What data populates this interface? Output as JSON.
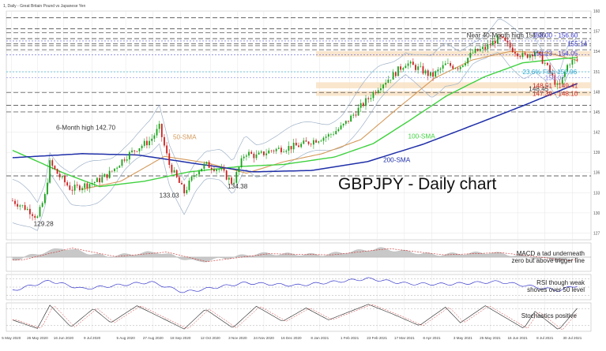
{
  "header": {
    "instrument": "1, Daily - Great Britain Pound vs Japanese Yen"
  },
  "main_title": "GBPJPY - Daily chart",
  "colors": {
    "bg": "#ffffff",
    "grid": "#e6e6e6",
    "up": "#17a317",
    "down": "#cc2020",
    "sma50": "#d49a5a",
    "sma100": "#3fd13f",
    "sma200": "#1f2fa8",
    "bb": "#9fb2c8",
    "level_blue": "#3a3acc",
    "level_red": "#cc2a2a",
    "fib": "#2aaad0",
    "zone": "#f8e2c4",
    "macd_hist": "#c8c8c8",
    "macd_signal": "#cc2a2a",
    "rsi": "#3a3acc",
    "stoch_main": "#222222",
    "stoch_signal": "#cc2a2a",
    "text": "#333333"
  },
  "chart_data": [
    {
      "type": "candlestick",
      "pane": "price",
      "ylim": [
        126.0,
        160.0
      ],
      "y_ticks": [
        127,
        130,
        133,
        136,
        139,
        142,
        145,
        148,
        151,
        154,
        157,
        160
      ],
      "close_path": [
        [
          "2020-05-06",
          131.8
        ],
        [
          "2020-05-12",
          131.2
        ],
        [
          "2020-05-20",
          130.3
        ],
        [
          "2020-05-26",
          129.28
        ],
        [
          "2020-06-01",
          132.5
        ],
        [
          "2020-06-05",
          137.4
        ],
        [
          "2020-06-12",
          135.6
        ],
        [
          "2020-06-22",
          133.5
        ],
        [
          "2020-07-06",
          134.3
        ],
        [
          "2020-07-14",
          134.8
        ],
        [
          "2020-07-24",
          136.0
        ],
        [
          "2020-08-04",
          138.2
        ],
        [
          "2020-08-14",
          139.6
        ],
        [
          "2020-08-25",
          140.8
        ],
        [
          "2020-09-01",
          142.7
        ],
        [
          "2020-09-09",
          137.2
        ],
        [
          "2020-09-21",
          133.03
        ],
        [
          "2020-09-30",
          136.0
        ],
        [
          "2020-10-08",
          137.2
        ],
        [
          "2020-10-20",
          136.4
        ],
        [
          "2020-10-30",
          134.38
        ],
        [
          "2020-11-09",
          139.0
        ],
        [
          "2020-11-18",
          138.4
        ],
        [
          "2020-11-30",
          139.3
        ],
        [
          "2020-12-09",
          139.6
        ],
        [
          "2020-12-22",
          140.0
        ],
        [
          "2021-01-05",
          140.9
        ],
        [
          "2021-01-15",
          141.5
        ],
        [
          "2021-01-26",
          142.8
        ],
        [
          "2021-02-05",
          144.8
        ],
        [
          "2021-02-16",
          147.0
        ],
        [
          "2021-02-25",
          148.9
        ],
        [
          "2021-03-08",
          150.5
        ],
        [
          "2021-03-18",
          152.3
        ],
        [
          "2021-03-29",
          151.4
        ],
        [
          "2021-04-08",
          150.3
        ],
        [
          "2021-04-19",
          152.0
        ],
        [
          "2021-04-30",
          151.7
        ],
        [
          "2021-05-11",
          153.8
        ],
        [
          "2021-05-21",
          154.5
        ],
        [
          "2021-06-01",
          156.06
        ],
        [
          "2021-06-10",
          154.6
        ],
        [
          "2021-06-21",
          153.2
        ],
        [
          "2021-06-30",
          154.0
        ],
        [
          "2021-07-08",
          152.2
        ],
        [
          "2021-07-19",
          148.45
        ],
        [
          "2021-07-27",
          152.4
        ],
        [
          "2021-08-04",
          152.7
        ]
      ],
      "sma50_path": [
        [
          "2020-07-01",
          133.5
        ],
        [
          "2020-08-01",
          134.7
        ],
        [
          "2020-09-05",
          138.4
        ],
        [
          "2020-10-10",
          137.4
        ],
        [
          "2020-11-10",
          135.9
        ],
        [
          "2020-12-10",
          137.6
        ],
        [
          "2021-01-10",
          138.8
        ],
        [
          "2021-02-10",
          140.9
        ],
        [
          "2021-03-10",
          145.3
        ],
        [
          "2021-04-10",
          150.0
        ],
        [
          "2021-05-10",
          152.7
        ],
        [
          "2021-06-10",
          154.0
        ],
        [
          "2021-07-10",
          153.8
        ],
        [
          "2021-08-04",
          152.6
        ]
      ],
      "sma100_path": [
        [
          "2020-05-06",
          139.3
        ],
        [
          "2020-06-15",
          136.0
        ],
        [
          "2020-07-15",
          133.9
        ],
        [
          "2020-08-20",
          134.7
        ],
        [
          "2020-09-25",
          136.1
        ],
        [
          "2020-11-05",
          136.9
        ],
        [
          "2020-12-10",
          137.2
        ],
        [
          "2021-01-20",
          138.3
        ],
        [
          "2021-02-20",
          140.3
        ],
        [
          "2021-03-20",
          143.6
        ],
        [
          "2021-04-20",
          147.4
        ],
        [
          "2021-05-20",
          150.2
        ],
        [
          "2021-06-20",
          152.3
        ],
        [
          "2021-07-20",
          152.9
        ],
        [
          "2021-08-04",
          153.1
        ]
      ],
      "sma200_path": [
        [
          "2020-05-06",
          138.2
        ],
        [
          "2020-07-01",
          138.8
        ],
        [
          "2020-08-15",
          138.6
        ],
        [
          "2020-10-01",
          137.3
        ],
        [
          "2020-11-15",
          136.1
        ],
        [
          "2021-01-01",
          136.3
        ],
        [
          "2021-02-15",
          137.6
        ],
        [
          "2021-04-01",
          140.2
        ],
        [
          "2021-05-15",
          143.3
        ],
        [
          "2021-06-20",
          145.9
        ],
        [
          "2021-08-04",
          149.3
        ]
      ],
      "levels_dashed": [
        159.0,
        157.35,
        156.8,
        155.9,
        155.14,
        154.85,
        154.25,
        147.9,
        146.0,
        145.0,
        135.5
      ],
      "levels_dotted": [
        155.55,
        153.5,
        150.96,
        150.07
      ],
      "zones": [
        [
          153.23,
          154.05
        ],
        [
          148.51,
          149.41
        ],
        [
          147.39,
          148.1
        ]
      ],
      "labels": [
        {
          "text": "Near 40-Month high 156.06",
          "x": "2021-05-06",
          "y": 156.4,
          "color": "#333333"
        },
        {
          "text": "158.00 - 156.60",
          "x": "2021-06-28",
          "y": 156.4,
          "color": "#3a3acc"
        },
        {
          "text": "155.14",
          "x": "2021-07-26",
          "y": 155.14,
          "color": "#3a3acc"
        },
        {
          "text": "153.23 - 154.05",
          "x": "2021-06-28",
          "y": 153.7,
          "color": "#3a3acc"
        },
        {
          "text": "23.6% Fibo 150.96",
          "x": "2021-06-20",
          "y": 150.96,
          "color": "#2aaad0"
        },
        {
          "text": "150.07",
          "x": "2021-07-08",
          "y": 150.07,
          "color": "#8a8ae0"
        },
        {
          "text": "148.45",
          "x": "2021-06-25",
          "y": 148.45,
          "color": "#333333"
        },
        {
          "text": "148.51 - 149.41",
          "x": "2021-06-28",
          "y": 148.95,
          "color": "#cc2a2a"
        },
        {
          "text": "147.39 - 148.10",
          "x": "2021-06-28",
          "y": 147.75,
          "color": "#cc2a2a"
        },
        {
          "text": "6-Month high 142.70",
          "x": "2020-06-10",
          "y": 142.7,
          "color": "#333333"
        },
        {
          "text": "50-SMA",
          "x": "2020-09-12",
          "y": 141.3,
          "color": "#d49a5a"
        },
        {
          "text": "100-SMA",
          "x": "2021-03-20",
          "y": 141.4,
          "color": "#3fd13f"
        },
        {
          "text": "200-SMA",
          "x": "2021-02-28",
          "y": 137.9,
          "color": "#1f2fa8"
        },
        {
          "text": "134.38",
          "x": "2020-10-26",
          "y": 134.0,
          "color": "#333333"
        },
        {
          "text": "133.03",
          "x": "2020-09-01",
          "y": 132.6,
          "color": "#333333"
        },
        {
          "text": "129.28",
          "x": "2020-05-23",
          "y": 128.4,
          "color": "#333333"
        }
      ]
    },
    {
      "type": "histogram",
      "pane": "macd",
      "ylim": [
        -2.5,
        2.5
      ],
      "annotation": [
        "MACD a tad underneath",
        "zero but above trigger line"
      ],
      "hist_path": [
        [
          "2020-05-06",
          -0.5
        ],
        [
          "2020-06-15",
          1.6
        ],
        [
          "2020-07-20",
          0.1
        ],
        [
          "2020-08-30",
          0.9
        ],
        [
          "2020-10-01",
          -0.8
        ],
        [
          "2020-11-20",
          0.6
        ],
        [
          "2021-01-10",
          0.4
        ],
        [
          "2021-02-25",
          1.5
        ],
        [
          "2021-04-10",
          0.4
        ],
        [
          "2021-05-25",
          0.8
        ],
        [
          "2021-07-20",
          -0.6
        ],
        [
          "2021-08-04",
          -0.1
        ]
      ]
    },
    {
      "type": "line",
      "pane": "rsi",
      "ylim": [
        20,
        80
      ],
      "levels": [
        70,
        50,
        30
      ],
      "annotation": [
        "RSI though weak",
        "shoves over 50 level"
      ],
      "rsi_path": [
        [
          "2020-05-06",
          42
        ],
        [
          "2020-06-05",
          65
        ],
        [
          "2020-07-01",
          46
        ],
        [
          "2020-08-25",
          62
        ],
        [
          "2020-09-21",
          38
        ],
        [
          "2020-11-09",
          60
        ],
        [
          "2020-12-20",
          54
        ],
        [
          "2021-02-16",
          70
        ],
        [
          "2021-03-20",
          58
        ],
        [
          "2021-04-20",
          57
        ],
        [
          "2021-06-01",
          63
        ],
        [
          "2021-07-19",
          42
        ],
        [
          "2021-08-04",
          55
        ]
      ]
    },
    {
      "type": "line",
      "pane": "stochastics",
      "ylim": [
        0,
        100
      ],
      "levels": [
        80,
        20
      ],
      "annotation": [
        "Stochastics positive"
      ],
      "stoch_path": [
        [
          "2020-05-06",
          40
        ],
        [
          "2020-05-26",
          10
        ],
        [
          "2020-06-05",
          92
        ],
        [
          "2020-06-22",
          15
        ],
        [
          "2020-07-10",
          80
        ],
        [
          "2020-07-24",
          30
        ],
        [
          "2020-08-14",
          90
        ],
        [
          "2020-09-21",
          8
        ],
        [
          "2020-10-08",
          78
        ],
        [
          "2020-10-30",
          12
        ],
        [
          "2020-11-18",
          88
        ],
        [
          "2020-12-09",
          35
        ],
        [
          "2020-12-28",
          82
        ],
        [
          "2021-01-15",
          40
        ],
        [
          "2021-02-16",
          95
        ],
        [
          "2021-03-08",
          60
        ],
        [
          "2021-03-29",
          20
        ],
        [
          "2021-04-19",
          85
        ],
        [
          "2021-05-01",
          30
        ],
        [
          "2021-05-21",
          90
        ],
        [
          "2021-06-21",
          10
        ],
        [
          "2021-06-30",
          70
        ],
        [
          "2021-07-19",
          5
        ],
        [
          "2021-08-04",
          86
        ]
      ]
    }
  ],
  "x_axis": {
    "range": [
      "2020-05-01",
      "2021-08-14"
    ],
    "labels": [
      {
        "text": "5 May 2020",
        "date": "2020-05-05"
      },
      {
        "text": "26 May 2020",
        "date": "2020-05-26"
      },
      {
        "text": "16 Jun 2020",
        "date": "2020-06-16"
      },
      {
        "text": "9 Jul 2020",
        "date": "2020-07-09"
      },
      {
        "text": "5 Aug 2020",
        "date": "2020-08-05"
      },
      {
        "text": "27 Aug 2020",
        "date": "2020-08-27"
      },
      {
        "text": "18 Sep 2020",
        "date": "2020-09-18"
      },
      {
        "text": "12 Oct 2020",
        "date": "2020-10-12"
      },
      {
        "text": "3 Nov 2020",
        "date": "2020-11-03"
      },
      {
        "text": "24 Nov 2020",
        "date": "2020-11-24"
      },
      {
        "text": "16 Dec 2020",
        "date": "2020-12-16"
      },
      {
        "text": "8 Jan 2021",
        "date": "2021-01-08"
      },
      {
        "text": "1 Feb 2021",
        "date": "2021-02-01"
      },
      {
        "text": "23 Feb 2021",
        "date": "2021-02-23"
      },
      {
        "text": "17 Mar 2021",
        "date": "2021-03-17"
      },
      {
        "text": "8 Apr 2021",
        "date": "2021-04-08"
      },
      {
        "text": "3 May 2021",
        "date": "2021-05-03"
      },
      {
        "text": "25 May 2021",
        "date": "2021-05-25"
      },
      {
        "text": "16 Jun 2021",
        "date": "2021-06-16"
      },
      {
        "text": "8 Jul 2021",
        "date": "2021-07-08"
      },
      {
        "text": "30 Jul 2021",
        "date": "2021-07-30"
      }
    ]
  }
}
